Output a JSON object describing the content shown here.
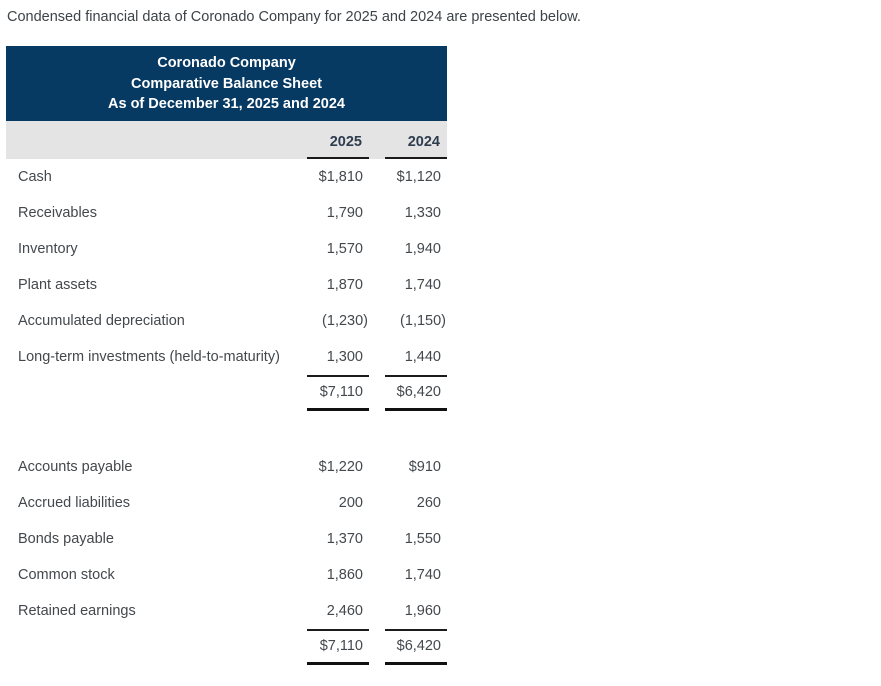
{
  "intro": "Condensed financial data of Coronado Company for 2025 and 2024 are presented below.",
  "colors": {
    "header_background": "#073a63",
    "header_text": "#ffffff",
    "column_band_background": "#e4e4e4",
    "column_header_text": "#2e3d4e",
    "body_text": "#43484d",
    "rule_lines": "#1a1a1a"
  },
  "balance_sheet": {
    "title_lines": [
      "Coronado Company",
      "Comparative Balance Sheet",
      "As of December 31, 2025 and 2024"
    ],
    "columns": [
      "2025",
      "2024"
    ],
    "sections": [
      {
        "name": "assets",
        "rows": [
          {
            "label": "Cash",
            "v2025": "$1,810",
            "v2024": "$1,120"
          },
          {
            "label": "Receivables",
            "v2025": "1,790",
            "v2024": "1,330"
          },
          {
            "label": "Inventory",
            "v2025": "1,570",
            "v2024": "1,940"
          },
          {
            "label": "Plant assets",
            "v2025": "1,870",
            "v2024": "1,740"
          },
          {
            "label": "Accumulated depreciation",
            "v2025": "(1,230)",
            "v2024": "(1,150)"
          },
          {
            "label": "Long-term investments (held-to-maturity)",
            "v2025": "1,300",
            "v2024": "1,440"
          }
        ],
        "total": {
          "v2025": "$7,110",
          "v2024": "$6,420"
        }
      },
      {
        "name": "liabilities_and_equity",
        "rows": [
          {
            "label": "Accounts payable",
            "v2025": "$1,220",
            "v2024": "$910"
          },
          {
            "label": "Accrued liabilities",
            "v2025": "200",
            "v2024": "260"
          },
          {
            "label": "Bonds payable",
            "v2025": "1,370",
            "v2024": "1,550"
          },
          {
            "label": "Common stock",
            "v2025": "1,860",
            "v2024": "1,740"
          },
          {
            "label": "Retained earnings",
            "v2025": "2,460",
            "v2024": "1,960"
          }
        ],
        "total": {
          "v2025": "$7,110",
          "v2024": "$6,420"
        }
      }
    ]
  }
}
